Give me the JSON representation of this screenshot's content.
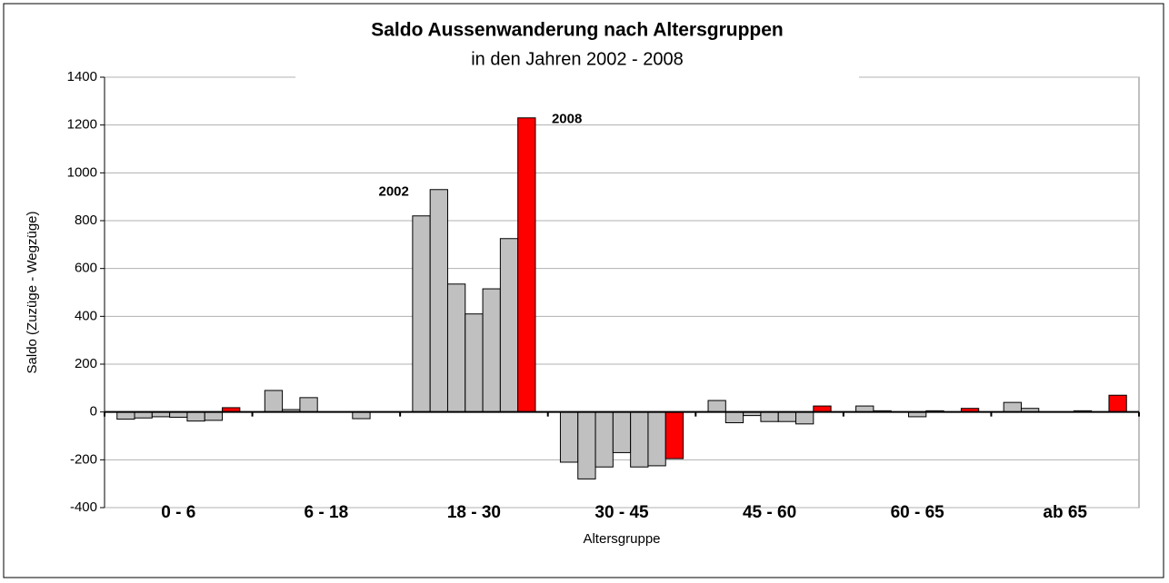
{
  "chart_data": {
    "type": "bar",
    "title": "Saldo Aussenwanderung  nach Altersgruppen",
    "subtitle": "in den Jahren 2002 - 2008",
    "y_label": "Saldo (Zuzüge - Wegzüge)",
    "x_label": "Altersgruppe",
    "categories": [
      "0 - 6",
      "6 - 18",
      "18 - 30",
      "30 - 45",
      "45 - 60",
      "60 - 65",
      "ab 65"
    ],
    "series": [
      {
        "color": "#c0c0c0",
        "values": [
          -30,
          90,
          820,
          -210,
          48,
          25,
          40
        ]
      },
      {
        "color": "#c0c0c0",
        "values": [
          -25,
          10,
          930,
          -280,
          -45,
          5,
          15
        ]
      },
      {
        "color": "#c0c0c0",
        "values": [
          -20,
          60,
          535,
          -230,
          -15,
          0,
          0
        ]
      },
      {
        "color": "#c0c0c0",
        "values": [
          -22,
          0,
          410,
          -170,
          -40,
          -20,
          0
        ]
      },
      {
        "color": "#c0c0c0",
        "values": [
          -38,
          0,
          515,
          -230,
          -40,
          5,
          5
        ]
      },
      {
        "color": "#c0c0c0",
        "values": [
          -35,
          -28,
          725,
          -225,
          -50,
          0,
          0
        ]
      },
      {
        "color": "#ff0000",
        "values": [
          18,
          0,
          1230,
          -195,
          25,
          15,
          70
        ]
      }
    ],
    "annotations": [
      "2002",
      "2008"
    ],
    "ylim": [
      -400,
      1400
    ],
    "yticks": [
      -400,
      -200,
      0,
      200,
      400,
      600,
      800,
      1000,
      1200,
      1400
    ],
    "grid": true
  }
}
